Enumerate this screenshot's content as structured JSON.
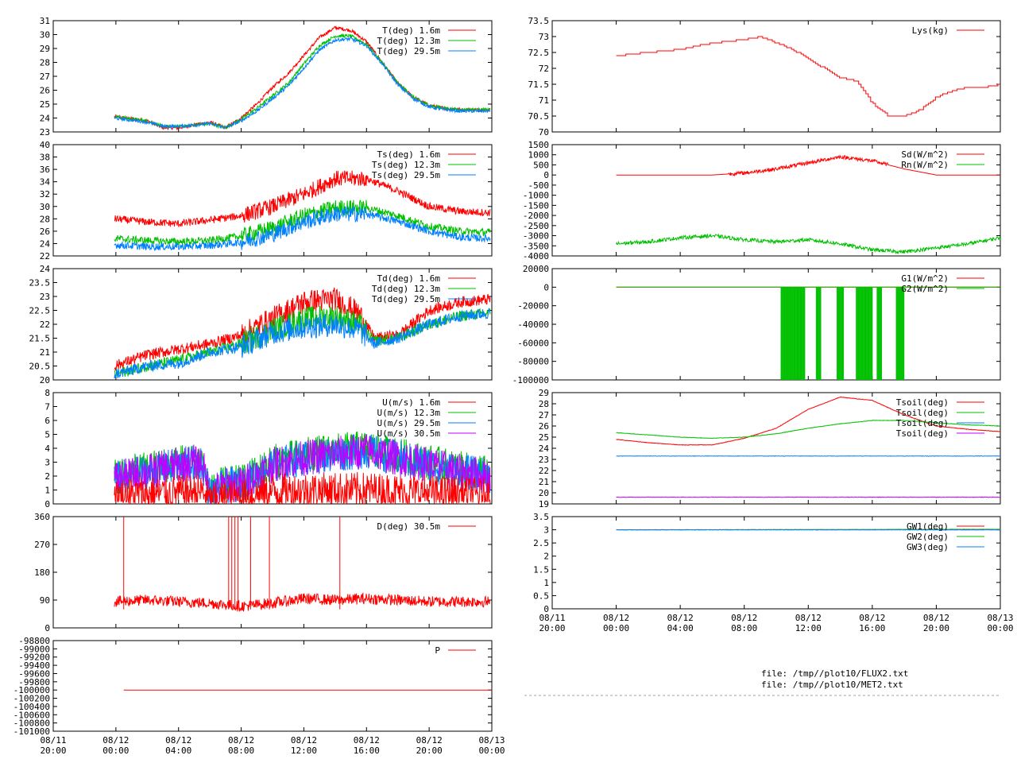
{
  "colors": {
    "red": "#ff0000",
    "green": "#00c000",
    "blue": "#0080ff",
    "magenta": "#c000ff",
    "frame": "#000000",
    "grid": "#a0a0a0"
  },
  "footer": {
    "file1": "file: /tmp//plot10/FLUX2.txt",
    "file2": "file: /tmp//plot10/MET2.txt"
  },
  "x_axis": {
    "range": [
      "08/11 20:00",
      "08/13 00:00"
    ],
    "ticks": [
      {
        "l1": "08/11",
        "l2": "20:00"
      },
      {
        "l1": "08/12",
        "l2": "00:00"
      },
      {
        "l1": "08/12",
        "l2": "04:00"
      },
      {
        "l1": "08/12",
        "l2": "08:00"
      },
      {
        "l1": "08/12",
        "l2": "12:00"
      },
      {
        "l1": "08/12",
        "l2": "16:00"
      },
      {
        "l1": "08/12",
        "l2": "20:00"
      },
      {
        "l1": "08/13",
        "l2": "00:00"
      }
    ]
  },
  "chart_data": [
    {
      "id": "air-temp",
      "type": "line",
      "ylim": [
        23,
        31
      ],
      "yticks": [
        "23",
        "24",
        "25",
        "26",
        "27",
        "28",
        "29",
        "30",
        "31"
      ],
      "series": [
        {
          "name": "T(deg)  1.6m",
          "color": "red"
        },
        {
          "name": "T(deg) 12.3m",
          "color": "green"
        },
        {
          "name": "T(deg) 29.5m",
          "color": "blue"
        }
      ],
      "x_hours": [
        3.9,
        6,
        7,
        8,
        9,
        10,
        11,
        12,
        13,
        14,
        15,
        16,
        17,
        18,
        19,
        20,
        21,
        22,
        23,
        24,
        25,
        26,
        27.9
      ],
      "values": [
        [
          24.1,
          23.8,
          23.3,
          23.3,
          23.5,
          23.7,
          23.3,
          24,
          25,
          26.2,
          27.2,
          28.5,
          29.8,
          30.5,
          30.3,
          29.5,
          28,
          26.5,
          25.5,
          24.9,
          24.7,
          24.6,
          24.6
        ],
        [
          24.1,
          23.8,
          23.4,
          23.4,
          23.5,
          23.6,
          23.3,
          23.9,
          24.7,
          25.6,
          26.5,
          27.9,
          29.2,
          29.9,
          29.9,
          29.3,
          28,
          26.5,
          25.5,
          24.9,
          24.7,
          24.6,
          24.6
        ],
        [
          24.0,
          23.7,
          23.4,
          23.4,
          23.5,
          23.6,
          23.3,
          23.8,
          24.5,
          25.4,
          26.3,
          27.6,
          28.9,
          29.6,
          29.7,
          29.2,
          27.9,
          26.4,
          25.4,
          24.8,
          24.6,
          24.5,
          24.5
        ]
      ]
    },
    {
      "id": "sonic-temp",
      "type": "line",
      "ylim": [
        22,
        40
      ],
      "yticks": [
        "22",
        "24",
        "26",
        "28",
        "30",
        "32",
        "34",
        "36",
        "38",
        "40"
      ],
      "series": [
        {
          "name": "Ts(deg)  1.6m",
          "color": "red"
        },
        {
          "name": "Ts(deg) 12.3m",
          "color": "green"
        },
        {
          "name": "Ts(deg) 29.5m",
          "color": "blue"
        }
      ],
      "x_hours": [
        3.9,
        6,
        8,
        10,
        12,
        14,
        16,
        18,
        20,
        22,
        24,
        26,
        27.9
      ],
      "values": [
        [
          28,
          27.5,
          27.2,
          27.8,
          28.5,
          30,
          32,
          34.5,
          34.5,
          32.5,
          30,
          29.2,
          29
        ],
        [
          24.8,
          24.5,
          24.3,
          24.5,
          25.2,
          26.5,
          28.5,
          29.8,
          29.8,
          28.5,
          26.8,
          26,
          25.8
        ],
        [
          23.8,
          23.5,
          23.5,
          23.7,
          24.2,
          25.5,
          27.5,
          28.8,
          28.8,
          27.6,
          26,
          25,
          24.8
        ]
      ]
    },
    {
      "id": "dewpoint",
      "type": "line",
      "ylim": [
        20,
        24
      ],
      "yticks": [
        "20",
        "20.5",
        "21",
        "21.5",
        "22",
        "22.5",
        "23",
        "23.5",
        "24"
      ],
      "series": [
        {
          "name": "Td(deg)  1.6m",
          "color": "red"
        },
        {
          "name": "Td(deg) 12.3m",
          "color": "green"
        },
        {
          "name": "Td(deg) 29.5m",
          "color": "blue"
        }
      ],
      "x_hours": [
        3.9,
        6,
        8,
        10,
        12,
        14,
        16,
        18,
        19.5,
        20.5,
        22,
        24,
        26,
        27.9
      ],
      "values": [
        [
          20.5,
          20.9,
          21.1,
          21.3,
          21.6,
          22.2,
          22.8,
          22.9,
          22.4,
          21.5,
          21.6,
          22.5,
          22.8,
          22.9
        ],
        [
          20.2,
          20.5,
          20.7,
          21.0,
          21.3,
          21.8,
          22.2,
          22.3,
          22.0,
          21.4,
          21.5,
          22.0,
          22.3,
          22.4
        ],
        [
          20.2,
          20.5,
          20.6,
          21.0,
          21.2,
          21.7,
          21.9,
          22.0,
          21.8,
          21.3,
          21.5,
          22.0,
          22.3,
          22.4
        ]
      ]
    },
    {
      "id": "wind-speed",
      "type": "line",
      "ylim": [
        0,
        8
      ],
      "yticks": [
        "0",
        "1",
        "2",
        "3",
        "4",
        "5",
        "6",
        "7",
        "8"
      ],
      "series": [
        {
          "name": "U(m/s)  1.6m",
          "color": "red"
        },
        {
          "name": "U(m/s) 12.3m",
          "color": "green"
        },
        {
          "name": "U(m/s) 29.5m",
          "color": "blue"
        },
        {
          "name": "U(m/s) 30.5m",
          "color": "magenta"
        }
      ],
      "x_hours": [
        3.9,
        6,
        8,
        9.5,
        10,
        11,
        12,
        14,
        16,
        18,
        20,
        22,
        24,
        26,
        27.9
      ],
      "values": [
        [
          0.5,
          0.7,
          0.8,
          0.9,
          0.2,
          0.4,
          0.5,
          0.9,
          1.0,
          1.0,
          1.0,
          0.9,
          0.8,
          0.7,
          0.6
        ],
        [
          2.0,
          2.5,
          3.0,
          3.2,
          0.8,
          1.5,
          1.5,
          3.0,
          3.5,
          3.8,
          4.0,
          3.5,
          3.0,
          2.5,
          2.2
        ],
        [
          1.8,
          2.3,
          2.8,
          3.0,
          0.7,
          1.3,
          1.4,
          2.8,
          3.3,
          3.6,
          3.8,
          3.3,
          2.8,
          2.3,
          2.0
        ],
        [
          1.8,
          2.3,
          2.8,
          3.0,
          0.7,
          1.3,
          1.4,
          2.8,
          3.3,
          3.6,
          3.8,
          3.3,
          2.8,
          2.3,
          2.0
        ]
      ]
    },
    {
      "id": "wind-dir",
      "type": "line",
      "ylim": [
        0,
        360
      ],
      "yticks": [
        "0",
        "90",
        "180",
        "270",
        "360"
      ],
      "series": [
        {
          "name": "D(deg)  30.5m",
          "color": "red"
        }
      ],
      "x_hours": [
        3.9,
        6,
        8,
        10,
        12,
        14,
        16,
        18,
        20,
        22,
        24,
        26,
        27.9
      ],
      "values": [
        [
          85,
          90,
          85,
          80,
          70,
          80,
          95,
          90,
          95,
          90,
          85,
          85,
          85
        ]
      ]
    },
    {
      "id": "pressure",
      "type": "line",
      "ylim": [
        -101000,
        -98800
      ],
      "yticks": [
        "-101000",
        "-100800",
        "-100600",
        "-100400",
        "-100200",
        "-100000",
        "-99800",
        "-99600",
        "-99400",
        "-99200",
        "-99000",
        "-98800"
      ],
      "series": [
        {
          "name": "P",
          "color": "red"
        }
      ],
      "x_hours": [
        4.5,
        28
      ],
      "values": [
        [
          -100000,
          -100000
        ]
      ]
    },
    {
      "id": "lysimeter",
      "type": "line",
      "ylim": [
        70,
        73.5
      ],
      "yticks": [
        "70",
        "70.5",
        "71",
        "71.5",
        "72",
        "72.5",
        "73",
        "73.5"
      ],
      "series": [
        {
          "name": "Lys(kg)",
          "color": "red"
        }
      ],
      "x_hours": [
        4,
        6,
        8,
        10,
        12,
        13,
        14,
        15,
        16,
        17,
        18,
        19,
        20,
        21,
        22,
        23,
        24,
        25,
        26,
        27,
        28
      ],
      "values": [
        [
          72.4,
          72.5,
          72.6,
          72.8,
          72.9,
          73.0,
          72.8,
          72.6,
          72.3,
          72.0,
          71.7,
          71.6,
          70.9,
          70.5,
          70.5,
          70.7,
          71.1,
          71.3,
          71.4,
          71.4,
          71.5
        ]
      ]
    },
    {
      "id": "radiation",
      "type": "line",
      "ylim": [
        -4000,
        1500
      ],
      "yticks": [
        "-4000",
        "-3500",
        "-3000",
        "-2500",
        "-2000",
        "-1500",
        "-1000",
        "-500",
        "0",
        "500",
        "1000",
        "1500"
      ],
      "series": [
        {
          "name": "Sd(W/m^2)",
          "color": "red"
        },
        {
          "name": "Rn(W/m^2)",
          "color": "green"
        }
      ],
      "x_hours": [
        4,
        6,
        8,
        10,
        12,
        14,
        16,
        18,
        20,
        22,
        24,
        26,
        28
      ],
      "values": [
        [
          0,
          0,
          0,
          0,
          100,
          300,
          600,
          900,
          700,
          300,
          0,
          0,
          0
        ],
        [
          -3400,
          -3300,
          -3100,
          -3000,
          -3200,
          -3300,
          -3200,
          -3400,
          -3700,
          -3800,
          -3600,
          -3400,
          -3100
        ]
      ]
    },
    {
      "id": "ground-flux",
      "type": "line",
      "ylim": [
        -100000,
        20000
      ],
      "yticks": [
        "-100000",
        "-80000",
        "-60000",
        "-40000",
        "-20000",
        "0",
        "20000"
      ],
      "series": [
        {
          "name": "G1(W/m^2)",
          "color": "red"
        },
        {
          "name": "G2(W/m^2)",
          "color": "green"
        }
      ],
      "x_hours": [
        4,
        8,
        12,
        16,
        20,
        24,
        28
      ],
      "values": [
        [
          0,
          0,
          0,
          0,
          0,
          0,
          0
        ],
        [
          0,
          0,
          0,
          0,
          0,
          0,
          0
        ]
      ]
    },
    {
      "id": "soil-temp",
      "type": "line",
      "ylim": [
        19,
        29
      ],
      "yticks": [
        "19",
        "20",
        "21",
        "22",
        "23",
        "24",
        "25",
        "26",
        "27",
        "28",
        "29"
      ],
      "series": [
        {
          "name": "Tsoil(deg)",
          "color": "red"
        },
        {
          "name": "Tsoil(deg)",
          "color": "green"
        },
        {
          "name": "Tsoil(deg)",
          "color": "blue"
        },
        {
          "name": "Tsoil(deg)",
          "color": "magenta"
        }
      ],
      "x_hours": [
        4,
        6,
        8,
        10,
        12,
        14,
        16,
        18,
        20,
        22,
        24,
        26,
        28
      ],
      "values": [
        [
          24.8,
          24.5,
          24.3,
          24.3,
          24.9,
          25.8,
          27.5,
          28.6,
          28.3,
          27.0,
          26.0,
          25.7,
          25.5
        ],
        [
          25.4,
          25.2,
          25.0,
          24.9,
          25.0,
          25.3,
          25.8,
          26.2,
          26.5,
          26.5,
          26.3,
          26.1,
          26.0
        ],
        [
          23.3,
          23.3,
          23.3,
          23.3,
          23.3,
          23.3,
          23.3,
          23.3,
          23.3,
          23.3,
          23.3,
          23.3,
          23.3
        ],
        [
          19.6,
          19.6,
          19.6,
          19.6,
          19.6,
          19.6,
          19.6,
          19.6,
          19.6,
          19.6,
          19.6,
          19.6,
          19.6
        ]
      ]
    },
    {
      "id": "ground-water",
      "type": "line",
      "ylim": [
        0,
        3.5
      ],
      "yticks": [
        "0",
        "0.5",
        "1",
        "1.5",
        "2",
        "2.5",
        "3",
        "3.5"
      ],
      "series": [
        {
          "name": "GW1(deg)",
          "color": "red"
        },
        {
          "name": "GW2(deg)",
          "color": "green"
        },
        {
          "name": "GW3(deg)",
          "color": "blue"
        }
      ],
      "x_hours": [
        4,
        28
      ],
      "values": [
        [
          3.0,
          3.0
        ],
        [
          3.0,
          3.02
        ],
        [
          3.0,
          3.0
        ]
      ]
    }
  ]
}
